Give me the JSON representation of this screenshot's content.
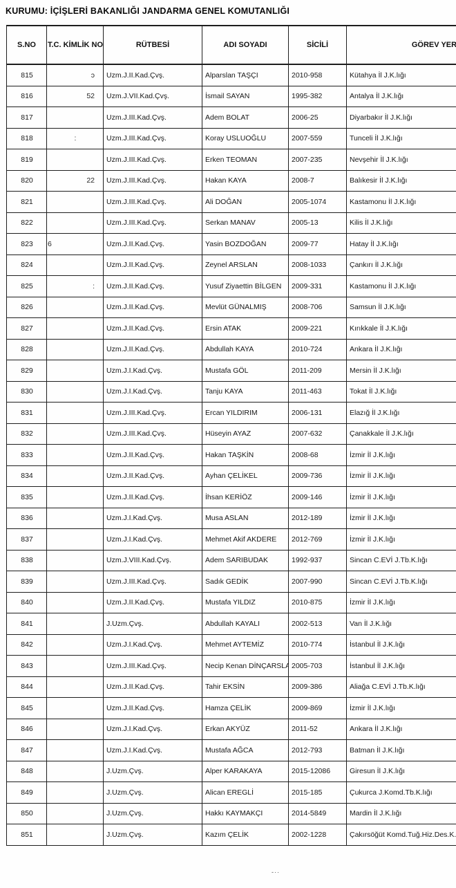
{
  "document": {
    "kurum_header": "KURUMU: İÇİŞLERİ BAKANLIĞI JANDARMA GENEL KOMUTANLIĞI",
    "footer_mark": "-··",
    "columns": [
      "S.NO",
      "T.C. KİMLİK NO.",
      "RÜTBESİ",
      "ADI SOYADI",
      "SİCİLİ",
      "GÖREV YERİ"
    ],
    "rows": [
      {
        "sno": "815",
        "kimlik": "ɔ",
        "kimlik_pos": "right",
        "rutbe": "Uzm.J.II.Kad.Çvş.",
        "adi": "Alparslan TAŞÇI",
        "sicil": "2010-958",
        "gorev": "Kütahya İl J.K.lığı"
      },
      {
        "sno": "816",
        "kimlik": "52",
        "kimlik_pos": "right",
        "rutbe": "Uzm.J.VII.Kad.Çvş.",
        "adi": "İsmail SAYAN",
        "sicil": "1995-382",
        "gorev": "Antalya İl J.K.lığı"
      },
      {
        "sno": "817",
        "kimlik": "",
        "kimlik_pos": "right",
        "rutbe": "Uzm.J.III.Kad.Çvş.",
        "adi": "Adem BOLAT",
        "sicil": "2006-25",
        "gorev": "Diyarbakır İl J.K.lığı"
      },
      {
        "sno": "818",
        "kimlik": ":",
        "kimlik_pos": "center",
        "rutbe": "Uzm.J.III.Kad.Çvş.",
        "adi": "Koray USLUOĞLU",
        "sicil": "2007-559",
        "gorev": "Tunceli İl J.K.lığı"
      },
      {
        "sno": "819",
        "kimlik": "",
        "kimlik_pos": "right",
        "rutbe": "Uzm.J.III.Kad.Çvş.",
        "adi": "Erken TEOMAN",
        "sicil": "2007-235",
        "gorev": "Nevşehir İl J.K.lığı"
      },
      {
        "sno": "820",
        "kimlik": "22",
        "kimlik_pos": "right",
        "rutbe": "Uzm.J.III.Kad.Çvş.",
        "adi": "Hakan KAYA",
        "sicil": "2008-7",
        "gorev": "Balıkesir İl J.K.lığı"
      },
      {
        "sno": "821",
        "kimlik": "",
        "kimlik_pos": "right",
        "rutbe": "Uzm.J.III.Kad.Çvş.",
        "adi": "Ali DOĞAN",
        "sicil": "2005-1074",
        "gorev": "Kastamonu İl J.K.lığı"
      },
      {
        "sno": "822",
        "kimlik": "",
        "kimlik_pos": "right",
        "rutbe": "Uzm.J.III.Kad.Çvş.",
        "adi": "Serkan MANAV",
        "sicil": "2005-13",
        "gorev": "Kilis İl J.K.lığı"
      },
      {
        "sno": "823",
        "kimlik": "6",
        "kimlik_pos": "left",
        "rutbe": "Uzm.J.II.Kad.Çvş.",
        "adi": "Yasin BOZDOĞAN",
        "sicil": "2009-77",
        "gorev": "Hatay İl J.K.lığı"
      },
      {
        "sno": "824",
        "kimlik": "",
        "kimlik_pos": "right",
        "rutbe": "Uzm.J.II.Kad.Çvş.",
        "adi": "Zeynel ARSLAN",
        "sicil": "2008-1033",
        "gorev": "Çankırı İl J.K.lığı"
      },
      {
        "sno": "825",
        "kimlik": ":",
        "kimlik_pos": "right",
        "rutbe": "Uzm.J.II.Kad.Çvş.",
        "adi": "Yusuf Ziyaettin BİLGEN",
        "sicil": "2009-331",
        "gorev": "Kastamonu İl J.K.lığı"
      },
      {
        "sno": "826",
        "kimlik": "",
        "kimlik_pos": "right",
        "rutbe": "Uzm.J.II.Kad.Çvş.",
        "adi": "Mevlüt GÜNALMIŞ",
        "sicil": "2008-706",
        "gorev": "Samsun İl J.K.lığı"
      },
      {
        "sno": "827",
        "kimlik": "",
        "kimlik_pos": "right",
        "rutbe": "Uzm.J.II.Kad.Çvş.",
        "adi": "Ersin ATAK",
        "sicil": "2009-221",
        "gorev": "Kırıkkale İl J.K.lığı"
      },
      {
        "sno": "828",
        "kimlik": "",
        "kimlik_pos": "right",
        "rutbe": "Uzm.J.II.Kad.Çvş.",
        "adi": "Abdullah KAYA",
        "sicil": "2010-724",
        "gorev": "Ankara İl J.K.lığı"
      },
      {
        "sno": "829",
        "kimlik": "",
        "kimlik_pos": "right",
        "rutbe": "Uzm.J.I.Kad.Çvş.",
        "adi": "Mustafa GÖL",
        "sicil": "2011-209",
        "gorev": "Mersin İl J.K.lığı"
      },
      {
        "sno": "830",
        "kimlik": "",
        "kimlik_pos": "right",
        "rutbe": "Uzm.J.I.Kad.Çvş.",
        "adi": "Tanju KAYA",
        "sicil": "2011-463",
        "gorev": "Tokat İl J.K.lığı"
      },
      {
        "sno": "831",
        "kimlik": "",
        "kimlik_pos": "right",
        "rutbe": "Uzm.J.III.Kad.Çvş.",
        "adi": "Ercan YILDIRIM",
        "sicil": "2006-131",
        "gorev": "Elazığ İl J.K.lığı"
      },
      {
        "sno": "832",
        "kimlik": "",
        "kimlik_pos": "right",
        "rutbe": "Uzm.J.III.Kad.Çvş.",
        "adi": "Hüseyin AYAZ",
        "sicil": "2007-632",
        "gorev": "Çanakkale İl J.K.lığı"
      },
      {
        "sno": "833",
        "kimlik": "",
        "kimlik_pos": "right",
        "rutbe": "Uzm.J.II.Kad.Çvş.",
        "adi": "Hakan TAŞKİN",
        "sicil": "2008-68",
        "gorev": "İzmir İl J.K.lığı"
      },
      {
        "sno": "834",
        "kimlik": "",
        "kimlik_pos": "right",
        "rutbe": "Uzm.J.II.Kad.Çvş.",
        "adi": "Ayhan ÇELİKEL",
        "sicil": "2009-736",
        "gorev": "İzmir İl J.K.lığı"
      },
      {
        "sno": "835",
        "kimlik": "",
        "kimlik_pos": "right",
        "rutbe": "Uzm.J.II.Kad.Çvş.",
        "adi": "İhsan KERİÖZ",
        "sicil": "2009-146",
        "gorev": "İzmir İl J.K.lığı"
      },
      {
        "sno": "836",
        "kimlik": "",
        "kimlik_pos": "right",
        "rutbe": "Uzm.J.I.Kad.Çvş.",
        "adi": "Musa ASLAN",
        "sicil": "2012-189",
        "gorev": "İzmir İl J.K.lığı"
      },
      {
        "sno": "837",
        "kimlik": "",
        "kimlik_pos": "right",
        "rutbe": "Uzm.J.I.Kad.Çvş.",
        "adi": "Mehmet Akif AKDERE",
        "sicil": "2012-769",
        "gorev": "İzmir İl J.K.lığı"
      },
      {
        "sno": "838",
        "kimlik": "",
        "kimlik_pos": "right",
        "rutbe": "Uzm.J.VIII.Kad.Çvş.",
        "adi": "Adem SARIBUDAK",
        "sicil": "1992-937",
        "gorev": "Sincan C.EVİ J.Tb.K.lığı"
      },
      {
        "sno": "839",
        "kimlik": "",
        "kimlik_pos": "right",
        "rutbe": "Uzm.J.III.Kad.Çvş.",
        "adi": "Sadık GEDİK",
        "sicil": "2007-990",
        "gorev": "Sincan C.EVİ J.Tb.K.lığı"
      },
      {
        "sno": "840",
        "kimlik": "",
        "kimlik_pos": "right",
        "rutbe": "Uzm.J.II.Kad.Çvş.",
        "adi": "Mustafa YILDIZ",
        "sicil": "2010-875",
        "gorev": "İzmir İl J.K.lığı"
      },
      {
        "sno": "841",
        "kimlik": "",
        "kimlik_pos": "right",
        "rutbe": "J.Uzm.Çvş.",
        "adi": "Abdullah KAYALI",
        "sicil": "2002-513",
        "gorev": "Van İl J.K.lığı"
      },
      {
        "sno": "842",
        "kimlik": "",
        "kimlik_pos": "right",
        "rutbe": "Uzm.J.I.Kad.Çvş.",
        "adi": "Mehmet AYTEMİZ",
        "sicil": "2010-774",
        "gorev": "İstanbul İl J.K.lığı"
      },
      {
        "sno": "843",
        "kimlik": "",
        "kimlik_pos": "right",
        "rutbe": "Uzm.J.III.Kad.Çvş.",
        "adi": "Necip Kenan DİNÇARSLAN",
        "sicil": "2005-703",
        "gorev": "İstanbul İl J.K.lığı"
      },
      {
        "sno": "844",
        "kimlik": "",
        "kimlik_pos": "right",
        "rutbe": "Uzm.J.II.Kad.Çvş.",
        "adi": "Tahir EKSİN",
        "sicil": "2009-386",
        "gorev": "Aliağa C.EVİ J.Tb.K.lığı"
      },
      {
        "sno": "845",
        "kimlik": "",
        "kimlik_pos": "right",
        "rutbe": "Uzm.J.II.Kad.Çvş.",
        "adi": "Hamza ÇELİK",
        "sicil": "2009-869",
        "gorev": "İzmir İl J.K.lığı"
      },
      {
        "sno": "846",
        "kimlik": "",
        "kimlik_pos": "right",
        "rutbe": "Uzm.J.I.Kad.Çvş.",
        "adi": "Erkan AKYÜZ",
        "sicil": "2011-52",
        "gorev": "Ankara İl J.K.lığı"
      },
      {
        "sno": "847",
        "kimlik": "",
        "kimlik_pos": "right",
        "rutbe": "Uzm.J.I.Kad.Çvş.",
        "adi": "Mustafa AĞCA",
        "sicil": "2012-793",
        "gorev": "Batman İl J.K.lığı"
      },
      {
        "sno": "848",
        "kimlik": "",
        "kimlik_pos": "right",
        "rutbe": "J.Uzm.Çvş.",
        "adi": "Alper KARAKAYA",
        "sicil": "2015-12086",
        "gorev": "Giresun İl J.K.lığı"
      },
      {
        "sno": "849",
        "kimlik": "",
        "kimlik_pos": "right",
        "rutbe": "J.Uzm.Çvş.",
        "adi": "Alican EREGLİ",
        "sicil": "2015-185",
        "gorev": "Çukurca J.Komd.Tb.K.lığı"
      },
      {
        "sno": "850",
        "kimlik": "",
        "kimlik_pos": "right",
        "rutbe": "J.Uzm.Çvş.",
        "adi": "Hakkı KAYMAKÇI",
        "sicil": "2014-5849",
        "gorev": "Mardin İl J.K.lığı"
      },
      {
        "sno": "851",
        "kimlik": "",
        "kimlik_pos": "right",
        "rutbe": "J.Uzm.Çvş.",
        "adi": "Kazım ÇELİK",
        "sicil": "2002-1228",
        "gorev": "Çakırsöğüt Komd.Tuğ.Hiz.Des.K.lığı"
      }
    ]
  }
}
